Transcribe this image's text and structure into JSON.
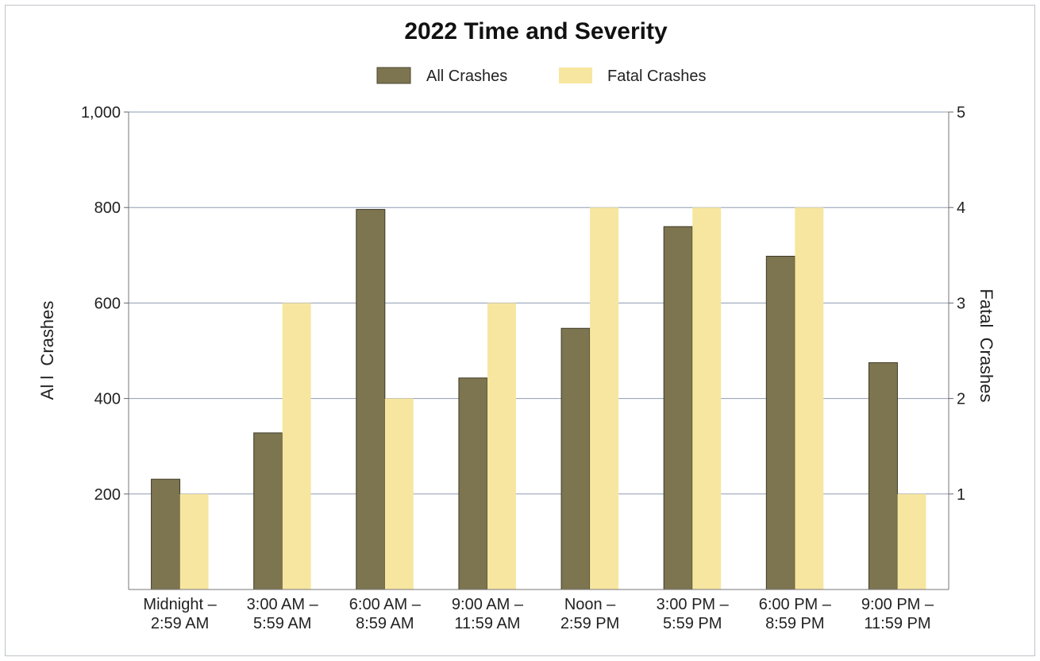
{
  "chart_data": {
    "type": "bar",
    "title": "2022 Time and Severity",
    "categories": [
      [
        "Midnight –",
        "2:59 AM"
      ],
      [
        "3:00 AM –",
        "5:59 AM"
      ],
      [
        "6:00 AM –",
        "8:59 AM"
      ],
      [
        "9:00 AM –",
        "11:59 AM"
      ],
      [
        "Noon –",
        "2:59 PM"
      ],
      [
        "3:00 PM –",
        "5:59 PM"
      ],
      [
        "6:00 PM –",
        "8:59 PM"
      ],
      [
        "9:00 PM –",
        "11:59 PM"
      ]
    ],
    "series": [
      {
        "name": "All Crashes",
        "axis": "left",
        "color": "#7d7550",
        "values": [
          231,
          328,
          796,
          443,
          547,
          760,
          698,
          475
        ]
      },
      {
        "name": "Fatal Crashes",
        "axis": "right",
        "color": "#f7e6a0",
        "values": [
          1,
          3,
          2,
          3,
          4,
          4,
          4,
          1
        ]
      }
    ],
    "ylabel": "Al l  Crashes",
    "y2label": "Fatal  Crashes",
    "ylim": [
      0,
      1000
    ],
    "y2lim": [
      0,
      5
    ],
    "yticks": [
      "200",
      "400",
      "600",
      "800",
      "1,000"
    ],
    "y2ticks": [
      "1",
      "2",
      "3",
      "4",
      "5"
    ],
    "grid": true,
    "legend": "top-center"
  }
}
